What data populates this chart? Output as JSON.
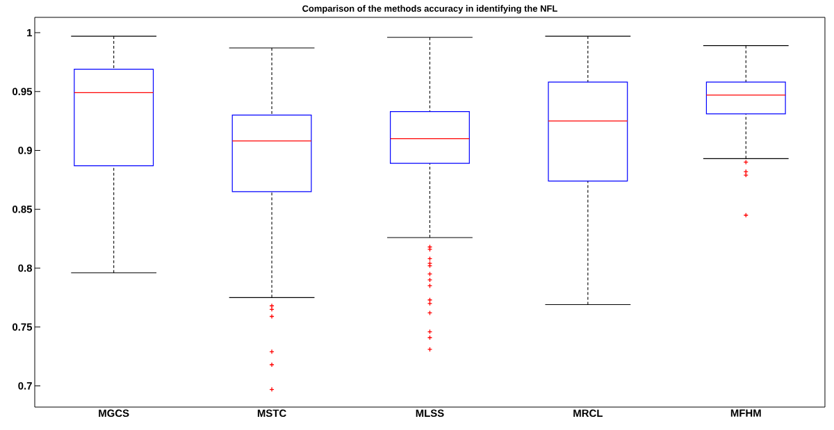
{
  "chart_data": {
    "type": "box",
    "title": "Comparison of the methods accuracy in identifying the NFL",
    "categories": [
      "MGCS",
      "MSTC",
      "MLSS",
      "MRCL",
      "MFHM"
    ],
    "color": "#0000ff",
    "boxes": [
      {
        "low": 0.796,
        "q1": 0.887,
        "median": 0.949,
        "q3": 0.969,
        "high": 0.997
      },
      {
        "low": 0.775,
        "q1": 0.865,
        "median": 0.908,
        "q3": 0.93,
        "high": 0.987,
        "outliers": [
          0.768,
          0.765,
          0.759,
          0.729,
          0.718,
          0.697
        ]
      },
      {
        "low": 0.826,
        "q1": 0.889,
        "median": 0.91,
        "q3": 0.933,
        "high": 0.996,
        "outliers": [
          0.818,
          0.816,
          0.808,
          0.804,
          0.802,
          0.795,
          0.79,
          0.785,
          0.773,
          0.77,
          0.762,
          0.746,
          0.741,
          0.731
        ]
      },
      {
        "low": 0.769,
        "q1": 0.874,
        "median": 0.925,
        "q3": 0.958,
        "high": 0.997
      },
      {
        "low": 0.893,
        "q1": 0.931,
        "median": 0.947,
        "q3": 0.958,
        "high": 0.989,
        "outliers": [
          0.89,
          0.882,
          0.879,
          0.845
        ]
      }
    ],
    "ylim": [
      0.682,
      1.013
    ],
    "yticks": [
      0.7,
      0.75,
      0.8,
      0.85,
      0.9,
      0.95,
      1
    ],
    "grid": false
  }
}
